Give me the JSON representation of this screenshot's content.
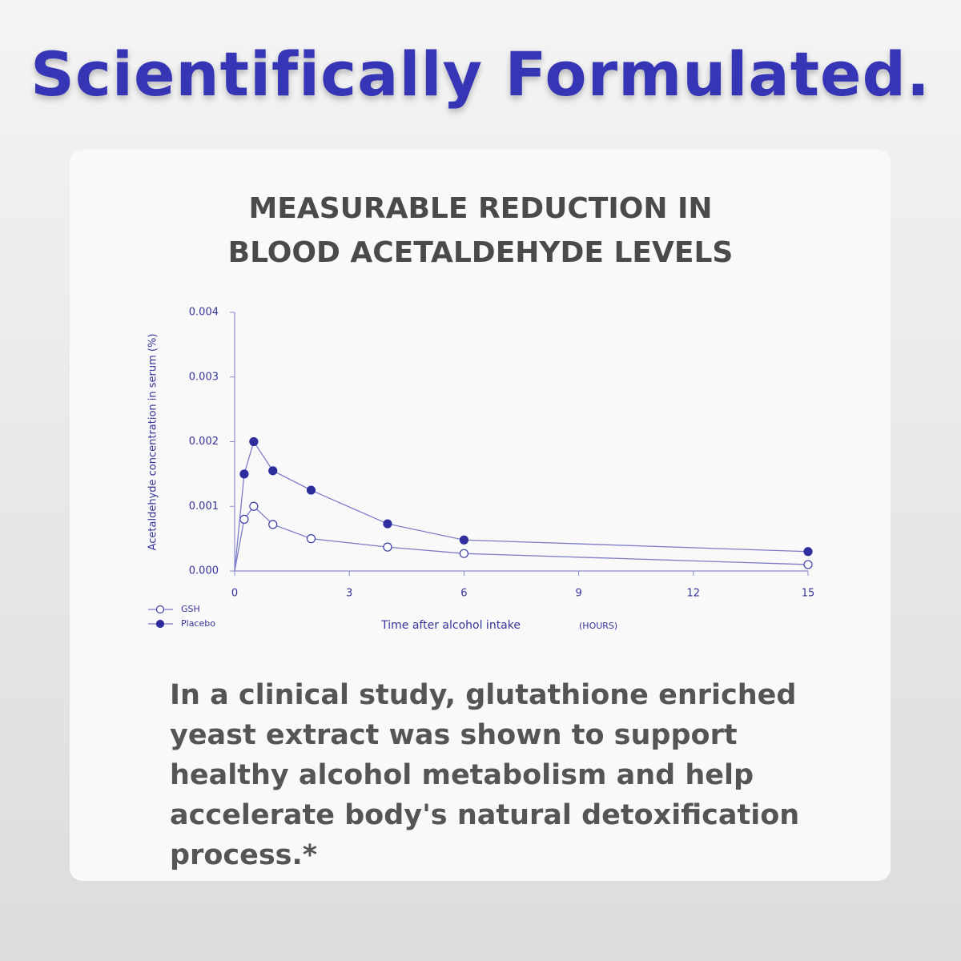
{
  "header": {
    "title": "Scientifically Formulated."
  },
  "card": {
    "text": "In a clinical study, glutathione enriched yeast extract was shown to support healthy alcohol metabolism and help accelerate body's natural detoxification process.*"
  },
  "chart_data": {
    "type": "line",
    "title": [
      "MEASURABLE REDUCTION IN",
      "BLOOD ACETALDEHYDE LEVELS"
    ],
    "x_label": "Time after alcohol intake",
    "x_label_unit": "(HOURS)",
    "y_label": "Acetaldehyde concentration in serum (%)",
    "x": [
      0,
      0.25,
      0.5,
      1,
      2,
      4,
      6,
      15
    ],
    "series": [
      {
        "name": "GSH",
        "color": "#3d3da8",
        "filled": false,
        "values": [
          0,
          0.0008,
          0.001,
          0.00072,
          0.0005,
          0.00037,
          0.00027,
          0.0001
        ]
      },
      {
        "name": "Placebo",
        "color": "#2e2e9e",
        "filled": true,
        "values": [
          0,
          0.0015,
          0.002,
          0.00155,
          0.00125,
          0.00073,
          0.00048,
          0.0003
        ]
      }
    ],
    "xlim": [
      0,
      15
    ],
    "xticks": [
      0,
      3,
      6,
      9,
      12,
      15
    ],
    "ylim": [
      0,
      0.004
    ],
    "yticks": [
      {
        "value": 0,
        "label": "0.000"
      },
      0.001,
      0.002,
      0.003,
      0.004
    ],
    "legend": "bottom-left"
  }
}
